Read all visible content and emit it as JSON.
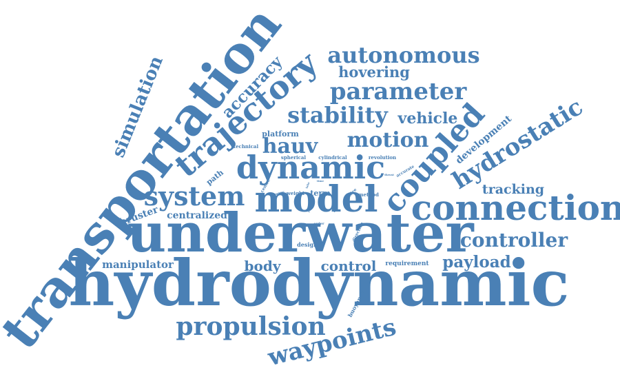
{
  "colors": {
    "word": "#4a80b5",
    "background": "#ffffff"
  },
  "words": [
    {
      "key": "hydrodynamic",
      "text": "hydrodynamic",
      "weight": 100
    },
    {
      "key": "underwater",
      "text": "underwater",
      "weight": 85
    },
    {
      "key": "transportation",
      "text": "transportation",
      "weight": 83
    },
    {
      "key": "model",
      "text": "model",
      "weight": 60
    },
    {
      "key": "connection",
      "text": "connection",
      "weight": 55
    },
    {
      "key": "trajectory",
      "text": "trajectory",
      "weight": 55
    },
    {
      "key": "dynamic",
      "text": "dynamic",
      "weight": 53
    },
    {
      "key": "coupled",
      "text": "coupled",
      "weight": 50
    },
    {
      "key": "system",
      "text": "system",
      "weight": 48
    },
    {
      "key": "hydrostatic",
      "text": "hydrostatic",
      "weight": 42
    },
    {
      "key": "propulsion",
      "text": "propulsion",
      "weight": 42
    },
    {
      "key": "waypoints",
      "text": "waypoints",
      "weight": 40
    },
    {
      "key": "autonomous",
      "text": "autonomous",
      "weight": 38
    },
    {
      "key": "parameter",
      "text": "parameter",
      "weight": 38
    },
    {
      "key": "stability",
      "text": "stability",
      "weight": 38
    },
    {
      "key": "motion",
      "text": "motion",
      "weight": 36
    },
    {
      "key": "hauv",
      "text": "hauv",
      "weight": 34
    },
    {
      "key": "controller",
      "text": "controller",
      "weight": 32
    },
    {
      "key": "simulation",
      "text": "simulation",
      "weight": 30
    },
    {
      "key": "accuracy",
      "text": "accuracy",
      "weight": 28
    },
    {
      "key": "vehicle",
      "text": "vehicle",
      "weight": 28
    },
    {
      "key": "payload",
      "text": "payload",
      "weight": 27
    },
    {
      "key": "hovering",
      "text": "hovering",
      "weight": 25
    },
    {
      "key": "body",
      "text": "body",
      "weight": 23
    },
    {
      "key": "control",
      "text": "control",
      "weight": 23
    },
    {
      "key": "tracking",
      "text": "tracking",
      "weight": 22
    },
    {
      "key": "manipulator",
      "text": "manipulator",
      "weight": 18
    },
    {
      "key": "centralized",
      "text": "centralized",
      "weight": 17
    },
    {
      "key": "thruster",
      "text": "thruster",
      "weight": 17
    },
    {
      "key": "development",
      "text": "development",
      "weight": 17
    },
    {
      "key": "platform",
      "text": "platform",
      "weight": 12
    },
    {
      "key": "path",
      "text": "path",
      "weight": 12
    },
    {
      "key": "term",
      "text": "term",
      "weight": 11
    },
    {
      "key": "requirement",
      "text": "requirement",
      "weight": 11
    },
    {
      "key": "design",
      "text": "design",
      "weight": 10
    },
    {
      "key": "buoyancy",
      "text": "buoyancy",
      "weight": 9
    },
    {
      "key": "technical",
      "text": "technical",
      "weight": 8
    },
    {
      "key": "spherical",
      "text": "spherical",
      "weight": 8
    },
    {
      "key": "cylindrical",
      "text": "cylindrical",
      "weight": 8
    },
    {
      "key": "revolution",
      "text": "revolution",
      "weight": 8
    },
    {
      "key": "weight",
      "text": "weight",
      "weight": 8
    },
    {
      "key": "method",
      "text": "method",
      "weight": 7
    },
    {
      "key": "entire",
      "text": "entire",
      "weight": 6
    },
    {
      "key": "centre",
      "text": "centre",
      "weight": 6
    },
    {
      "key": "accurate",
      "text": "accurate",
      "weight": 6
    },
    {
      "key": "direction",
      "text": "direction",
      "weight": 6
    },
    {
      "key": "order",
      "text": "order",
      "weight": 6
    },
    {
      "key": "paper",
      "text": "paper",
      "weight": 5
    },
    {
      "key": "time",
      "text": "time",
      "weight": 5
    },
    {
      "key": "thrust",
      "text": "thrust",
      "weight": 5
    },
    {
      "key": "effect",
      "text": "effect",
      "weight": 4
    },
    {
      "key": "result",
      "text": "result",
      "weight": 4
    },
    {
      "key": "take",
      "text": "take",
      "weight": 4
    }
  ]
}
